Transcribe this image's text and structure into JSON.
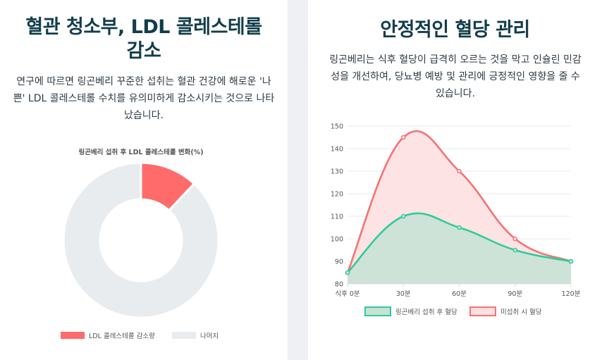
{
  "left": {
    "title": "혈관 청소부, LDL 콜레스테롤 감소",
    "description": "연구에 따르면 링곤베리 꾸준한 섭취는 혈관 건강에 해로운 '나쁜' LDL 콜레스테롤 수치를 유의미하게 감소시키는 것으로 나타났습니다."
  },
  "right": {
    "title": "안정적인 혈당 관리",
    "description": "링곤베리는 식후 혈당이 급격히 오르는 것을 막고 인슐린 민감성을 개선하여, 당뇨병 예방 및 관리에 긍정적인 영향을 줄 수 있습니다."
  },
  "chart_data": [
    {
      "type": "pie",
      "variant": "doughnut",
      "title": "링곤베리 섭취 후 LDL 콜레스테롤 변화(%)",
      "categories": [
        "LDL 콜레스테롤 감소량",
        "나머지"
      ],
      "values": [
        12,
        88
      ],
      "colors": [
        "#ff6b6b",
        "#e9ecef"
      ],
      "legend": "bottom"
    },
    {
      "type": "area",
      "title": "",
      "xlabel": "",
      "ylabel": "",
      "categories": [
        "식후 0분",
        "30분",
        "60분",
        "90분",
        "120분"
      ],
      "series": [
        {
          "name": "링곤베리 섭취 후 혈당",
          "values": [
            85,
            110,
            105,
            95,
            90
          ],
          "color": "#2ecc9a",
          "fill": "#c9e2d5"
        },
        {
          "name": "미섭취 시 혈당",
          "values": [
            85,
            145,
            130,
            100,
            90
          ],
          "color": "#f47373",
          "fill": "#fde0e0"
        }
      ],
      "ylim": [
        80,
        150
      ],
      "yticks": [
        80,
        90,
        100,
        110,
        120,
        130,
        140,
        150
      ],
      "grid": true,
      "legend": "bottom"
    }
  ]
}
